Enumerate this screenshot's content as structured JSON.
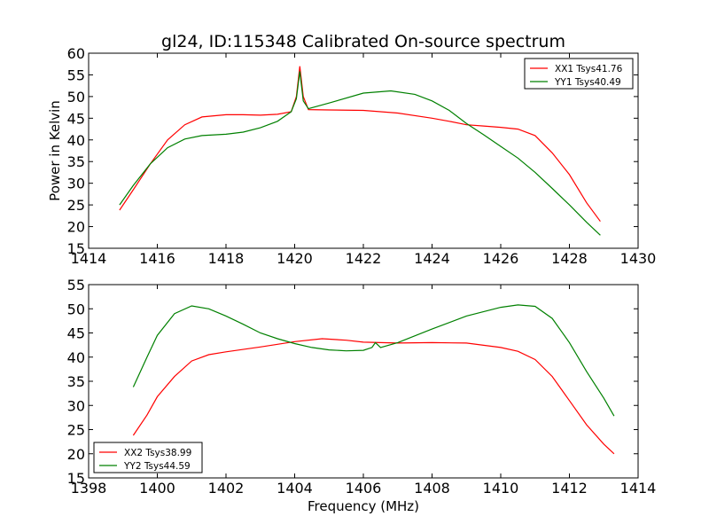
{
  "page": {
    "title": "gl24, ID:115348 Calibrated On-source spectrum"
  },
  "chart_data": [
    {
      "type": "line",
      "title": "gl24, ID:115348 Calibrated On-source spectrum",
      "xlabel": "",
      "ylabel": "Power in Kelvin",
      "xlim": [
        1414,
        1430
      ],
      "ylim": [
        15,
        60
      ],
      "xticks": [
        1414,
        1416,
        1418,
        1420,
        1422,
        1424,
        1426,
        1428,
        1430
      ],
      "yticks": [
        15,
        20,
        25,
        30,
        35,
        40,
        45,
        50,
        55,
        60
      ],
      "grid": false,
      "legend_position": "top-right",
      "series": [
        {
          "name": "XX1 Tsys41.76",
          "color": "#ff0000",
          "x": [
            1414.9,
            1415.3,
            1415.8,
            1416.3,
            1416.8,
            1417.3,
            1418.0,
            1418.5,
            1419.0,
            1419.5,
            1419.9,
            1420.05,
            1420.15,
            1420.25,
            1420.4,
            1421.0,
            1422.0,
            1423.0,
            1424.0,
            1424.5,
            1425.0,
            1425.5,
            1426.0,
            1426.5,
            1427.0,
            1427.5,
            1428.0,
            1428.5,
            1428.9
          ],
          "y": [
            23.8,
            28.5,
            34.5,
            40.0,
            43.5,
            45.3,
            45.8,
            45.8,
            45.7,
            45.9,
            46.5,
            50.0,
            57.0,
            50.0,
            47.0,
            46.9,
            46.8,
            46.2,
            45.0,
            44.3,
            43.5,
            43.2,
            42.9,
            42.5,
            41.0,
            37.0,
            32.0,
            25.5,
            21.2
          ]
        },
        {
          "name": "YY1 Tsys40.49",
          "color": "#008000",
          "x": [
            1414.9,
            1415.3,
            1415.8,
            1416.3,
            1416.8,
            1417.3,
            1418.0,
            1418.5,
            1419.0,
            1419.5,
            1419.9,
            1420.05,
            1420.15,
            1420.25,
            1420.4,
            1421.0,
            1422.0,
            1422.8,
            1423.5,
            1424.0,
            1424.5,
            1425.0,
            1425.5,
            1426.0,
            1426.5,
            1427.0,
            1427.5,
            1428.0,
            1428.5,
            1428.9
          ],
          "y": [
            25.0,
            29.5,
            34.5,
            38.2,
            40.2,
            41.0,
            41.3,
            41.8,
            42.8,
            44.3,
            46.5,
            49.5,
            55.8,
            49.0,
            47.2,
            48.5,
            50.8,
            51.3,
            50.5,
            49.0,
            46.8,
            43.8,
            41.2,
            38.5,
            35.8,
            32.5,
            28.8,
            25.0,
            21.0,
            18.0
          ]
        }
      ]
    },
    {
      "type": "line",
      "title": "",
      "xlabel": "Frequency (MHz)",
      "ylabel": "",
      "xlim": [
        1398,
        1414
      ],
      "ylim": [
        15,
        55
      ],
      "xticks": [
        1398,
        1400,
        1402,
        1404,
        1406,
        1408,
        1410,
        1412,
        1414
      ],
      "yticks": [
        15,
        20,
        25,
        30,
        35,
        40,
        45,
        50,
        55
      ],
      "grid": false,
      "legend_position": "bottom-left",
      "series": [
        {
          "name": "XX2 Tsys38.99",
          "color": "#ff0000",
          "x": [
            1399.3,
            1399.7,
            1400.0,
            1400.5,
            1401.0,
            1401.5,
            1402.0,
            1403.0,
            1404.0,
            1404.8,
            1405.5,
            1406.0,
            1406.5,
            1407.0,
            1408.0,
            1409.0,
            1410.0,
            1410.5,
            1411.0,
            1411.5,
            1412.0,
            1412.5,
            1413.0,
            1413.3
          ],
          "y": [
            23.8,
            28.0,
            31.8,
            36.0,
            39.2,
            40.5,
            41.1,
            42.1,
            43.2,
            43.8,
            43.5,
            43.1,
            43.0,
            42.9,
            43.0,
            42.9,
            42.0,
            41.2,
            39.5,
            36.0,
            31.0,
            26.0,
            22.0,
            20.0
          ]
        },
        {
          "name": "YY2 Tsys44.59",
          "color": "#008000",
          "x": [
            1399.3,
            1399.7,
            1400.0,
            1400.5,
            1401.0,
            1401.5,
            1402.0,
            1402.5,
            1403.0,
            1403.5,
            1404.0,
            1404.5,
            1405.0,
            1405.5,
            1406.0,
            1406.25,
            1406.35,
            1406.5,
            1407.0,
            1408.0,
            1409.0,
            1410.0,
            1410.5,
            1411.0,
            1411.5,
            1412.0,
            1412.5,
            1413.0,
            1413.3
          ],
          "y": [
            33.8,
            40.0,
            44.5,
            49.0,
            50.6,
            50.0,
            48.5,
            46.8,
            45.0,
            43.8,
            42.8,
            42.0,
            41.5,
            41.3,
            41.4,
            42.0,
            43.0,
            42.0,
            43.0,
            45.8,
            48.5,
            50.3,
            50.8,
            50.5,
            48.0,
            43.0,
            37.0,
            31.5,
            27.8
          ]
        }
      ]
    }
  ]
}
